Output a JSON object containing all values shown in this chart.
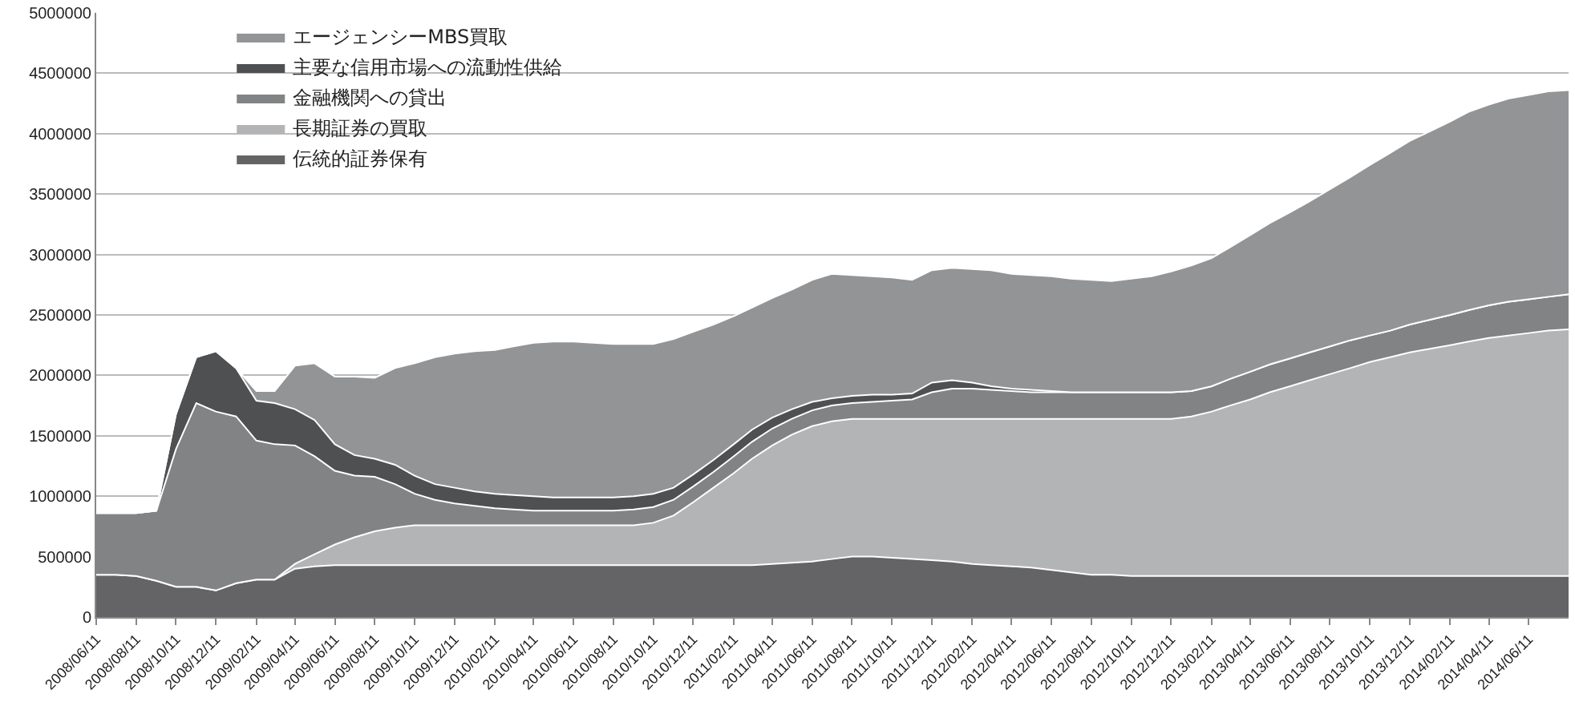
{
  "chart_data": {
    "type": "area",
    "stacked": true,
    "grid": "y",
    "legend": "top left",
    "x": [
      "2008-06-11",
      "2008-07-11",
      "2008-08-11",
      "2008-09-11",
      "2008-10-11",
      "2008-11-11",
      "2008-12-11",
      "2009-01-11",
      "2009-02-11",
      "2009-03-11",
      "2009-04-11",
      "2009-05-11",
      "2009-06-11",
      "2009-07-11",
      "2009-08-11",
      "2009-09-11",
      "2009-10-11",
      "2009-11-11",
      "2009-12-11",
      "2010-01-11",
      "2010-02-11",
      "2010-03-11",
      "2010-04-11",
      "2010-05-11",
      "2010-06-11",
      "2010-07-11",
      "2010-08-11",
      "2010-09-11",
      "2010-10-11",
      "2010-11-11",
      "2010-12-11",
      "2011-01-11",
      "2011-02-11",
      "2011-03-11",
      "2011-04-11",
      "2011-05-11",
      "2011-06-11",
      "2011-07-11",
      "2011-08-11",
      "2011-09-11",
      "2011-10-11",
      "2011-11-11",
      "2011-12-11",
      "2012-01-11",
      "2012-02-11",
      "2012-03-11",
      "2012-04-11",
      "2012-05-11",
      "2012-06-11",
      "2012-07-11",
      "2012-08-11",
      "2012-09-11",
      "2012-10-11",
      "2012-11-11",
      "2012-12-11",
      "2013-01-11",
      "2013-02-11",
      "2013-03-11",
      "2013-04-11",
      "2013-05-11",
      "2013-06-11",
      "2013-07-11",
      "2013-08-11",
      "2013-09-11",
      "2013-10-11",
      "2013-11-11",
      "2013-12-11",
      "2014-01-11",
      "2014-02-11",
      "2014-03-11",
      "2014-04-11",
      "2014-05-11",
      "2014-06-11",
      "2014-07-11",
      "2014-08-11"
    ],
    "series": [
      {
        "name": "伝統的証券保有",
        "color": "#646466",
        "values": [
          350000,
          350000,
          340000,
          300000,
          250000,
          250000,
          220000,
          280000,
          310000,
          310000,
          400000,
          420000,
          430000,
          430000,
          430000,
          430000,
          430000,
          430000,
          430000,
          430000,
          430000,
          430000,
          430000,
          430000,
          430000,
          430000,
          430000,
          430000,
          430000,
          430000,
          430000,
          430000,
          430000,
          430000,
          440000,
          450000,
          460000,
          480000,
          500000,
          500000,
          490000,
          480000,
          470000,
          460000,
          440000,
          430000,
          420000,
          410000,
          390000,
          370000,
          350000,
          350000,
          340000,
          340000,
          340000,
          340000,
          340000,
          340000,
          340000,
          340000,
          340000,
          340000,
          340000,
          340000,
          340000,
          340000,
          340000,
          340000,
          340000,
          340000,
          340000,
          340000,
          340000,
          340000,
          340000
        ]
      },
      {
        "name": "長期証券の買取",
        "color": "#b3b4b6",
        "values": [
          0,
          0,
          0,
          0,
          0,
          0,
          0,
          0,
          0,
          0,
          40000,
          100000,
          170000,
          230000,
          280000,
          310000,
          330000,
          330000,
          330000,
          330000,
          330000,
          330000,
          330000,
          330000,
          330000,
          330000,
          330000,
          330000,
          350000,
          410000,
          520000,
          640000,
          760000,
          880000,
          980000,
          1060000,
          1120000,
          1140000,
          1140000,
          1140000,
          1150000,
          1160000,
          1170000,
          1180000,
          1200000,
          1210000,
          1220000,
          1230000,
          1250000,
          1270000,
          1290000,
          1290000,
          1300000,
          1300000,
          1300000,
          1320000,
          1360000,
          1410000,
          1460000,
          1520000,
          1570000,
          1620000,
          1670000,
          1720000,
          1770000,
          1810000,
          1850000,
          1880000,
          1910000,
          1940000,
          1970000,
          1990000,
          2010000,
          2030000,
          2040000
        ]
      },
      {
        "name": "金融機関への貸出",
        "color": "#828385",
        "values": [
          510000,
          510000,
          520000,
          580000,
          1140000,
          1520000,
          1480000,
          1380000,
          1150000,
          1120000,
          980000,
          810000,
          610000,
          510000,
          450000,
          360000,
          260000,
          210000,
          180000,
          160000,
          140000,
          130000,
          120000,
          120000,
          120000,
          120000,
          120000,
          130000,
          130000,
          130000,
          130000,
          130000,
          140000,
          140000,
          140000,
          130000,
          130000,
          130000,
          130000,
          140000,
          150000,
          160000,
          220000,
          250000,
          250000,
          240000,
          230000,
          220000,
          220000,
          220000,
          220000,
          220000,
          220000,
          220000,
          220000,
          210000,
          210000,
          220000,
          230000,
          230000,
          230000,
          230000,
          230000,
          230000,
          220000,
          220000,
          230000,
          240000,
          250000,
          260000,
          270000,
          280000,
          280000,
          280000,
          290000
        ]
      },
      {
        "name": "主要な信用市場への流動性供給",
        "color": "#4f5052",
        "values": [
          0,
          0,
          0,
          0,
          290000,
          380000,
          500000,
          400000,
          330000,
          340000,
          300000,
          300000,
          220000,
          170000,
          150000,
          160000,
          150000,
          130000,
          130000,
          120000,
          120000,
          120000,
          120000,
          110000,
          110000,
          110000,
          110000,
          110000,
          110000,
          100000,
          100000,
          100000,
          100000,
          100000,
          90000,
          80000,
          70000,
          60000,
          60000,
          60000,
          50000,
          50000,
          80000,
          70000,
          50000,
          30000,
          20000,
          20000,
          10000,
          0,
          0,
          0,
          0,
          0,
          0,
          0,
          0,
          0,
          0,
          0,
          0,
          0,
          0,
          0,
          0,
          0,
          0,
          0,
          0,
          0,
          0,
          0,
          0,
          0,
          0
        ]
      },
      {
        "name": "エージェンシーMBS買取",
        "color": "#939496",
        "values": [
          0,
          0,
          0,
          0,
          0,
          0,
          0,
          0,
          80000,
          100000,
          360000,
          470000,
          560000,
          650000,
          670000,
          800000,
          930000,
          1050000,
          1110000,
          1160000,
          1190000,
          1230000,
          1270000,
          1290000,
          1290000,
          1280000,
          1270000,
          1260000,
          1240000,
          1230000,
          1180000,
          1120000,
          1060000,
          1010000,
          990000,
          990000,
          1010000,
          1030000,
          1000000,
          980000,
          970000,
          940000,
          930000,
          930000,
          940000,
          960000,
          950000,
          950000,
          950000,
          940000,
          930000,
          920000,
          940000,
          960000,
          1000000,
          1040000,
          1060000,
          1090000,
          1130000,
          1170000,
          1210000,
          1250000,
          1300000,
          1350000,
          1410000,
          1470000,
          1520000,
          1560000,
          1600000,
          1640000,
          1660000,
          1680000,
          1690000,
          1700000,
          1690000
        ]
      }
    ],
    "xlim": [
      "2008-06-11",
      "2014-08-11"
    ],
    "xticks": [
      {
        "value": "2008-06-11",
        "label": "2008/06/11"
      },
      {
        "value": "2008-08-11",
        "label": "2008/08/11"
      },
      {
        "value": "2008-10-11",
        "label": "2008/10/11"
      },
      {
        "value": "2008-12-11",
        "label": "2008/12/11"
      },
      {
        "value": "2009-02-11",
        "label": "2009/02/11"
      },
      {
        "value": "2009-04-11",
        "label": "2009/04/11"
      },
      {
        "value": "2009-06-11",
        "label": "2009/06/11"
      },
      {
        "value": "2009-08-11",
        "label": "2009/08/11"
      },
      {
        "value": "2009-10-11",
        "label": "2009/10/11"
      },
      {
        "value": "2009-12-11",
        "label": "2009/12/11"
      },
      {
        "value": "2010-02-11",
        "label": "2010/02/11"
      },
      {
        "value": "2010-04-11",
        "label": "2010/04/11"
      },
      {
        "value": "2010-06-11",
        "label": "2010/06/11"
      },
      {
        "value": "2010-08-11",
        "label": "2010/08/11"
      },
      {
        "value": "2010-10-11",
        "label": "2010/10/11"
      },
      {
        "value": "2010-12-11",
        "label": "2010/12/11"
      },
      {
        "value": "2011-02-11",
        "label": "2011/02/11"
      },
      {
        "value": "2011-04-11",
        "label": "2011/04/11"
      },
      {
        "value": "2011-06-11",
        "label": "2011/06/11"
      },
      {
        "value": "2011-08-11",
        "label": "2011/08/11"
      },
      {
        "value": "2011-10-11",
        "label": "2011/10/11"
      },
      {
        "value": "2011-12-11",
        "label": "2011/12/11"
      },
      {
        "value": "2012-02-11",
        "label": "2012/02/11"
      },
      {
        "value": "2012-04-11",
        "label": "2012/04/11"
      },
      {
        "value": "2012-06-11",
        "label": "2012/06/11"
      },
      {
        "value": "2012-08-11",
        "label": "2012/08/11"
      },
      {
        "value": "2012-10-11",
        "label": "2012/10/11"
      },
      {
        "value": "2012-12-11",
        "label": "2012/12/11"
      },
      {
        "value": "2013-02-11",
        "label": "2013/02/11"
      },
      {
        "value": "2013-04-11",
        "label": "2013/04/11"
      },
      {
        "value": "2013-06-11",
        "label": "2013/06/11"
      },
      {
        "value": "2013-08-11",
        "label": "2013/08/11"
      },
      {
        "value": "2013-10-11",
        "label": "2013/10/11"
      },
      {
        "value": "2013-12-11",
        "label": "2013/12/11"
      },
      {
        "value": "2014-02-11",
        "label": "2014/02/11"
      },
      {
        "value": "2014-04-11",
        "label": "2014/04/11"
      },
      {
        "value": "2014-06-11",
        "label": "2014/06/11"
      }
    ],
    "ylim": [
      0,
      5000000
    ],
    "yticks": [
      0,
      500000,
      1000000,
      1500000,
      2000000,
      2500000,
      3000000,
      3500000,
      4000000,
      4500000,
      5000000
    ]
  }
}
